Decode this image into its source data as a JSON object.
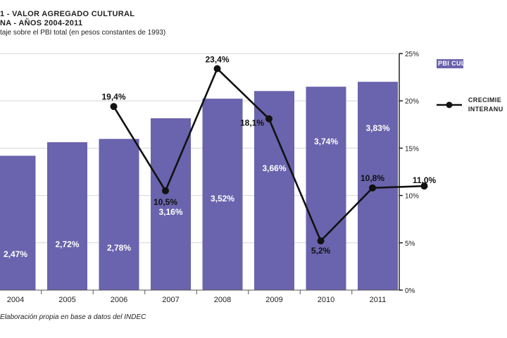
{
  "header": {
    "title_line1": "1 - VALOR AGREGADO CULTURAL",
    "title_line2": "NA - AÑOS 2004-2011",
    "subtitle": "taje sobre el PBI total (en pesos constantes de 1993)"
  },
  "source": "Elaboración propia en base a datos del INDEC",
  "legend": {
    "bar_label": "PBI CULTU",
    "line_label_1": "CRECIMIE",
    "line_label_2": "INTERANU"
  },
  "colors": {
    "bar": "#6a63ad",
    "line": "#111111",
    "bar_label": "#ffffff"
  },
  "chart_data": {
    "type": "bar",
    "categories": [
      "2004",
      "2005",
      "2006",
      "2007",
      "2008",
      "2009",
      "2010",
      "2011"
    ],
    "series": [
      {
        "name": "PBI CULTU",
        "type": "bar",
        "values": [
          2.47,
          2.72,
          2.78,
          3.16,
          3.52,
          3.66,
          3.74,
          3.83
        ],
        "labels": [
          "2,47%",
          "2,72%",
          "2,78%",
          "3,16%",
          "3,52%",
          "3,66%",
          "3,74%",
          "3,83%"
        ]
      },
      {
        "name": "CRECIMIE INTERANU",
        "type": "line",
        "axis": "right",
        "values": [
          null,
          19.4,
          10.5,
          23.4,
          18.1,
          5.2,
          10.8,
          11.0
        ],
        "labels": [
          "",
          "19,4%",
          "10,5%",
          "23,4%",
          "18,1%",
          "5,2%",
          "10,8%",
          "11,0%"
        ]
      }
    ],
    "left_axis_range": [
      0,
      4.35
    ],
    "right_axis": {
      "ylim": [
        0,
        25
      ],
      "ticks": [
        0,
        5,
        10,
        15,
        20,
        25
      ],
      "tick_labels": [
        "0%",
        "5%",
        "10%",
        "15%",
        "20%",
        "25%"
      ]
    },
    "grid": true,
    "legend_position": "right"
  }
}
